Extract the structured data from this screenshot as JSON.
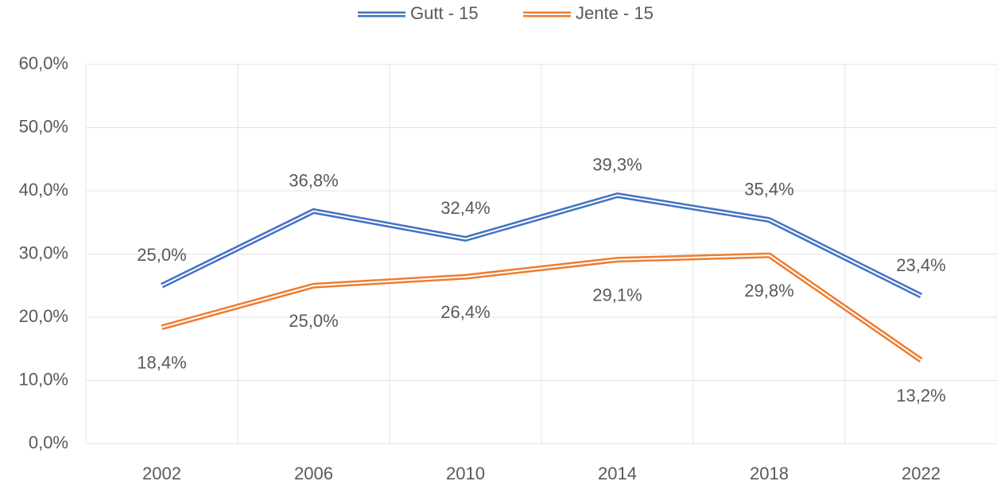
{
  "chart_data": {
    "type": "line",
    "categories": [
      "2002",
      "2006",
      "2010",
      "2014",
      "2018",
      "2022"
    ],
    "series": [
      {
        "name": "Gutt - 15",
        "color": "#4472c4",
        "values": [
          25.0,
          36.8,
          32.4,
          39.3,
          35.4,
          23.4
        ],
        "value_labels": [
          "25,0%",
          "36,8%",
          "32,4%",
          "39,3%",
          "35,4%",
          "23,4%"
        ],
        "label_position": "above"
      },
      {
        "name": "Jente - 15",
        "color": "#ed7d31",
        "values": [
          18.4,
          25.0,
          26.4,
          29.1,
          29.8,
          13.2
        ],
        "value_labels": [
          "18,4%",
          "25,0%",
          "26,4%",
          "29,1%",
          "29,8%",
          "13,2%"
        ],
        "label_position": "below"
      }
    ],
    "ylim": [
      0,
      60
    ],
    "yticks": [
      {
        "value": 0,
        "label": "0,0%"
      },
      {
        "value": 10,
        "label": "10,0%"
      },
      {
        "value": 20,
        "label": "20,0%"
      },
      {
        "value": 30,
        "label": "30,0%"
      },
      {
        "value": 40,
        "label": "40,0%"
      },
      {
        "value": 50,
        "label": "50,0%"
      },
      {
        "value": 60,
        "label": "60,0%"
      }
    ],
    "grid": true,
    "legend": "top"
  }
}
